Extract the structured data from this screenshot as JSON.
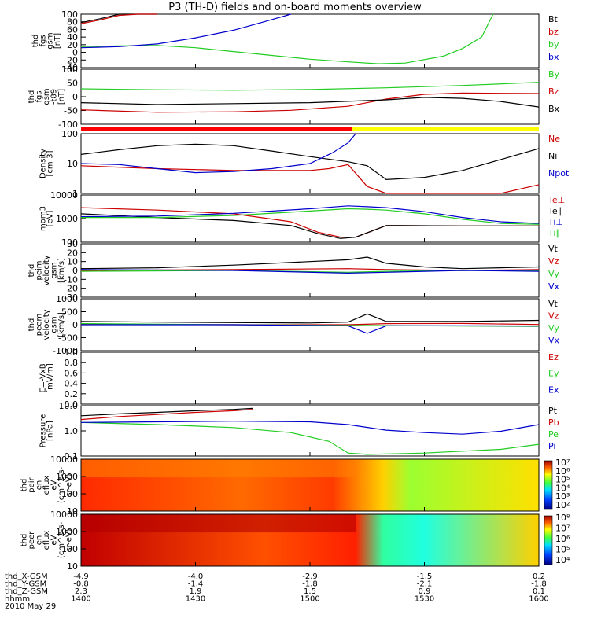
{
  "title": "P3 (TH-D) fields and on-board moments overview",
  "panels": [
    {
      "id": "fgs",
      "ylabel": [
        "thd",
        "fgs",
        "gsm",
        "[nT]"
      ],
      "ticks": [
        "100",
        "80",
        "60",
        "40",
        "20",
        "0",
        "-20",
        "-40"
      ],
      "legend": [
        {
          "t": "Bt",
          "c": "#000000"
        },
        {
          "t": "bz",
          "c": "#cc0000"
        },
        {
          "t": "by",
          "c": "#22cc22"
        },
        {
          "t": "bx",
          "c": "#0000cc"
        }
      ]
    },
    {
      "id": "fgs_minus_t89",
      "ylabel": [
        "thd",
        "fgs",
        "gsm",
        "-t89",
        "[nT]"
      ],
      "ticks": [
        "100",
        "50",
        "0",
        "-50",
        "-100"
      ],
      "legend": [
        {
          "t": "By",
          "c": "#22cc22"
        },
        {
          "t": "Bz",
          "c": "#cc0000"
        },
        {
          "t": "Bx",
          "c": "#000000"
        }
      ]
    },
    {
      "id": "density",
      "ylabel": [
        "Density",
        "[cm-3]"
      ],
      "ticks": [
        "100",
        "10",
        "1"
      ],
      "legend": [
        {
          "t": "Ne",
          "c": "#cc0000"
        },
        {
          "t": "Ni",
          "c": "#000000"
        },
        {
          "t": "Npot",
          "c": "#0000cc"
        }
      ]
    },
    {
      "id": "temperature",
      "ylabel": [
        "mom3",
        "[eV]"
      ],
      "ticks": [
        "10000",
        "1000",
        "100"
      ],
      "legend": [
        {
          "t": "Te⊥",
          "c": "#cc0000"
        },
        {
          "t": "Te∥",
          "c": "#000000"
        },
        {
          "t": "Ti⊥",
          "c": "#0000cc"
        },
        {
          "t": "Ti∥",
          "c": "#22cc22"
        }
      ]
    },
    {
      "id": "peim_velocity",
      "ylabel": [
        "thd",
        "peim",
        "velocity",
        "gsm",
        "[km/s]"
      ],
      "ticks": [
        "30",
        "20",
        "10",
        "0",
        "-10",
        "-20",
        "-30"
      ],
      "legend": [
        {
          "t": "Vt",
          "c": "#000000"
        },
        {
          "t": "Vz",
          "c": "#cc0000"
        },
        {
          "t": "Vy",
          "c": "#22cc22"
        },
        {
          "t": "Vx",
          "c": "#0000cc"
        }
      ]
    },
    {
      "id": "peem_velocity",
      "ylabel": [
        "thd",
        "peem",
        "velocity",
        "gsm",
        "[km/s]"
      ],
      "ticks": [
        "1000",
        "500",
        "0",
        "-500",
        "-1000"
      ],
      "legend": [
        {
          "t": "Vt",
          "c": "#000000"
        },
        {
          "t": "Vz",
          "c": "#cc0000"
        },
        {
          "t": "Vy",
          "c": "#22cc22"
        },
        {
          "t": "Vx",
          "c": "#0000cc"
        }
      ]
    },
    {
      "id": "efield",
      "ylabel": [
        "E=-VxB",
        "[mV/m]"
      ],
      "ticks": [
        "1.0",
        "0.8",
        "0.6",
        "0.4",
        "0.2",
        "0.0"
      ],
      "legend": [
        {
          "t": "Ez",
          "c": "#cc0000"
        },
        {
          "t": "Ey",
          "c": "#22cc22"
        },
        {
          "t": "Ex",
          "c": "#0000cc"
        }
      ]
    },
    {
      "id": "pressure",
      "ylabel": [
        "Pressure",
        "[nPa]"
      ],
      "ticks": [
        "10.0",
        "1.0",
        "0.1"
      ],
      "legend": [
        {
          "t": "Pt",
          "c": "#000000"
        },
        {
          "t": "Pb",
          "c": "#cc0000"
        },
        {
          "t": "Pe",
          "c": "#22cc22"
        },
        {
          "t": "Pi",
          "c": "#0000cc"
        }
      ]
    },
    {
      "id": "peir_spectrogram",
      "ylabel": [
        "thd",
        "peir",
        "en",
        "eflux",
        "eV",
        "(cm^2-s-",
        "sr-eV)"
      ],
      "ticks": [
        "10000",
        "1000",
        "100",
        "10"
      ],
      "colorbar": [
        "10⁷",
        "10⁶",
        "10⁵",
        "10⁴",
        "10³",
        "10²"
      ]
    },
    {
      "id": "peer_spectrogram",
      "ylabel": [
        "thd",
        "peer",
        "en",
        "eflux",
        "eV",
        "(cm^2-s-",
        "sr-eV)"
      ],
      "ticks": [
        "10000",
        "1000",
        "100",
        "10"
      ],
      "colorbar": [
        "10⁸",
        "10⁷",
        "10⁶",
        "10⁵",
        "10⁴"
      ]
    }
  ],
  "axis_footer": {
    "rows": [
      {
        "label": "thd_X-GSM",
        "values": [
          "-4.9",
          "-4.0",
          "-2.9",
          "-1.5",
          "0.2"
        ]
      },
      {
        "label": "thd_Y-GSM",
        "values": [
          "-0.8",
          "-1.4",
          "-1.8",
          "-2.1",
          "-1.8"
        ]
      },
      {
        "label": "thd_Z-GSM",
        "values": [
          "2.3",
          "1.9",
          "1.5",
          "0.9",
          "0.1"
        ]
      },
      {
        "label": "hhmm",
        "values": [
          "1400",
          "1430",
          "1500",
          "1530",
          "1600"
        ]
      }
    ],
    "date": "2010 May 29"
  },
  "chart_data": {
    "type": "line",
    "title": "P3 (TH-D) fields and on-board moments overview",
    "xlabel": "hhmm",
    "x_ticks": [
      "1400",
      "1430",
      "1500",
      "1530",
      "1600"
    ],
    "xlim": [
      0,
      120
    ],
    "x_units": "minutes after 14:00 UT",
    "series": [
      {
        "panel": "fgs",
        "name": "Bt",
        "color": "#000000",
        "x": [
          0,
          5,
          10,
          15,
          20
        ],
        "y": [
          78,
          88,
          100,
          112,
          125
        ]
      },
      {
        "panel": "fgs",
        "name": "bz",
        "color": "#cc0000",
        "x": [
          0,
          5,
          10,
          15,
          20
        ],
        "y": [
          75,
          85,
          97,
          110,
          122
        ]
      },
      {
        "panel": "fgs",
        "name": "by",
        "color": "#22cc22",
        "x": [
          0,
          10,
          20,
          30,
          40,
          50,
          60,
          70,
          78,
          85,
          95,
          100,
          105,
          108
        ],
        "y": [
          15,
          17,
          18,
          12,
          2,
          -8,
          -18,
          -25,
          -30,
          -28,
          -10,
          10,
          40,
          105
        ]
      },
      {
        "panel": "fgs",
        "name": "bx",
        "color": "#0000cc",
        "x": [
          0,
          10,
          20,
          30,
          40,
          48,
          55
        ],
        "y": [
          12,
          15,
          22,
          38,
          58,
          80,
          105
        ]
      },
      {
        "panel": "fgs_minus_t89",
        "name": "By",
        "color": "#22cc22",
        "x": [
          0,
          20,
          40,
          60,
          80,
          100,
          120
        ],
        "y": [
          18,
          14,
          12,
          15,
          22,
          32,
          45
        ]
      },
      {
        "panel": "fgs_minus_t89",
        "name": "Bz",
        "color": "#cc0000",
        "x": [
          0,
          20,
          40,
          55,
          70,
          80,
          90,
          100,
          120
        ],
        "y": [
          -70,
          -80,
          -78,
          -72,
          -55,
          -25,
          -5,
          0,
          -2
        ]
      },
      {
        "panel": "fgs_minus_t89",
        "name": "Bx",
        "color": "#000000",
        "x": [
          0,
          20,
          40,
          60,
          80,
          90,
          100,
          110,
          120
        ],
        "y": [
          -40,
          -48,
          -44,
          -40,
          -28,
          -18,
          -22,
          -35,
          -58
        ]
      },
      {
        "panel": "density",
        "name": "Ne",
        "color": "#cc0000",
        "x": [
          0,
          20,
          40,
          60,
          65,
          70,
          75,
          80,
          90,
          100,
          110,
          120
        ],
        "y": [
          8,
          6,
          5,
          5,
          6,
          9,
          1,
          0.2,
          0.15,
          0.2,
          0.4,
          1.2
        ]
      },
      {
        "panel": "density",
        "name": "Ni",
        "color": "#000000",
        "x": [
          0,
          10,
          20,
          30,
          40,
          50,
          60,
          70,
          75,
          80,
          90,
          100,
          110,
          120
        ],
        "y": [
          25,
          40,
          60,
          70,
          60,
          35,
          20,
          12,
          8,
          2,
          2.5,
          5,
          15,
          45
        ]
      },
      {
        "panel": "density",
        "name": "Npot",
        "color": "#0000cc",
        "x": [
          0,
          10,
          20,
          30,
          40,
          50,
          60,
          66,
          70,
          72
        ],
        "y": [
          10,
          9,
          6,
          4,
          4.5,
          6,
          10,
          30,
          80,
          200
        ]
      },
      {
        "panel": "temperature",
        "name": "Te⊥",
        "color": "#cc0000",
        "x": [
          0,
          20,
          40,
          55,
          62,
          68,
          72,
          80,
          100,
          120
        ],
        "y": [
          3500,
          2500,
          1500,
          500,
          120,
          60,
          60,
          300,
          280,
          280
        ]
      },
      {
        "panel": "temperature",
        "name": "Te∥",
        "color": "#000000",
        "x": [
          0,
          20,
          40,
          55,
          62,
          68,
          72,
          80,
          100,
          120
        ],
        "y": [
          1500,
          900,
          600,
          300,
          100,
          50,
          60,
          300,
          280,
          280
        ]
      },
      {
        "panel": "temperature",
        "name": "Ti⊥",
        "color": "#0000cc",
        "x": [
          0,
          20,
          40,
          60,
          70,
          75,
          80,
          90,
          100,
          110,
          120
        ],
        "y": [
          1000,
          1100,
          1600,
          3000,
          4500,
          4000,
          3500,
          2000,
          900,
          500,
          400
        ]
      },
      {
        "panel": "temperature",
        "name": "Ti∥",
        "color": "#22cc22",
        "x": [
          0,
          20,
          40,
          60,
          70,
          75,
          80,
          90,
          100,
          110,
          120
        ],
        "y": [
          900,
          900,
          1200,
          2200,
          3000,
          2800,
          2500,
          1500,
          700,
          400,
          350
        ]
      },
      {
        "panel": "peim_velocity",
        "name": "Vt",
        "color": "#000000",
        "x": [
          0,
          20,
          40,
          60,
          70,
          75,
          80,
          90,
          100,
          120
        ],
        "y": [
          2,
          3,
          6,
          10,
          12,
          15,
          8,
          4,
          2,
          4
        ]
      },
      {
        "panel": "peim_velocity",
        "name": "Vz",
        "color": "#cc0000",
        "x": [
          0,
          40,
          70,
          80,
          100,
          120
        ],
        "y": [
          0,
          1,
          2,
          1,
          0,
          1
        ]
      },
      {
        "panel": "peim_velocity",
        "name": "Vy",
        "color": "#22cc22",
        "x": [
          0,
          40,
          70,
          80,
          100,
          120
        ],
        "y": [
          -1,
          0,
          -2,
          -1,
          0,
          0
        ]
      },
      {
        "panel": "peim_velocity",
        "name": "Vx",
        "color": "#0000cc",
        "x": [
          0,
          40,
          70,
          80,
          100,
          120
        ],
        "y": [
          1,
          0,
          -3,
          -2,
          0,
          -1
        ]
      },
      {
        "panel": "peem_velocity",
        "name": "Vt",
        "color": "#000000",
        "x": [
          0,
          20,
          40,
          60,
          70,
          75,
          80,
          100,
          120
        ],
        "y": [
          150,
          120,
          100,
          80,
          120,
          500,
          150,
          150,
          200
        ]
      },
      {
        "panel": "peem_velocity",
        "name": "Vz",
        "color": "#cc0000",
        "x": [
          0,
          40,
          70,
          80,
          100,
          120
        ],
        "y": [
          20,
          0,
          0,
          50,
          60,
          10
        ]
      },
      {
        "panel": "peem_velocity",
        "name": "Vy",
        "color": "#22cc22",
        "x": [
          0,
          40,
          70,
          80,
          100,
          120
        ],
        "y": [
          50,
          0,
          -30,
          -40,
          -60,
          -80
        ]
      },
      {
        "panel": "peem_velocity",
        "name": "Vx",
        "color": "#0000cc",
        "x": [
          0,
          40,
          70,
          75,
          80,
          100,
          120
        ],
        "y": [
          0,
          0,
          -50,
          -400,
          -50,
          -50,
          -60
        ]
      },
      {
        "panel": "pressure",
        "name": "Pt",
        "color": "#000000",
        "x": [
          0,
          10,
          20,
          30,
          40,
          45
        ],
        "y": [
          5,
          6.5,
          8,
          10,
          12,
          14
        ]
      },
      {
        "panel": "pressure",
        "name": "Pb",
        "color": "#cc0000",
        "x": [
          0,
          10,
          20,
          30,
          40,
          45
        ],
        "y": [
          3,
          4.5,
          6,
          8,
          10,
          12
        ]
      },
      {
        "panel": "pressure",
        "name": "Pe",
        "color": "#22cc22",
        "x": [
          0,
          20,
          40,
          55,
          65,
          70,
          75,
          90,
          110,
          120
        ],
        "y": [
          2,
          1.5,
          1,
          0.5,
          0.15,
          0.03,
          0.025,
          0.03,
          0.05,
          0.1
        ]
      },
      {
        "panel": "pressure",
        "name": "Pi",
        "color": "#0000cc",
        "x": [
          0,
          20,
          40,
          60,
          70,
          80,
          90,
          100,
          110,
          120
        ],
        "y": [
          2,
          2.2,
          2.4,
          2.2,
          1.5,
          0.7,
          0.5,
          0.4,
          0.6,
          1.5
        ]
      }
    ],
    "ylims": {
      "fgs": [
        -40,
        100
      ],
      "fgs_minus_t89": [
        -130,
        100
      ],
      "density": [
        0.5,
        200
      ],
      "temperature": [
        30,
        20000
      ],
      "peim_velocity": [
        -30,
        30
      ],
      "peem_velocity": [
        -1200,
        1200
      ],
      "efield": [
        0,
        1
      ],
      "pressure": [
        0.02,
        20
      ]
    },
    "mode_bar": [
      {
        "from": 0,
        "to": 71,
        "color": "#ff0000"
      },
      {
        "from": 71,
        "to": 120,
        "color": "#ffff00"
      }
    ]
  }
}
